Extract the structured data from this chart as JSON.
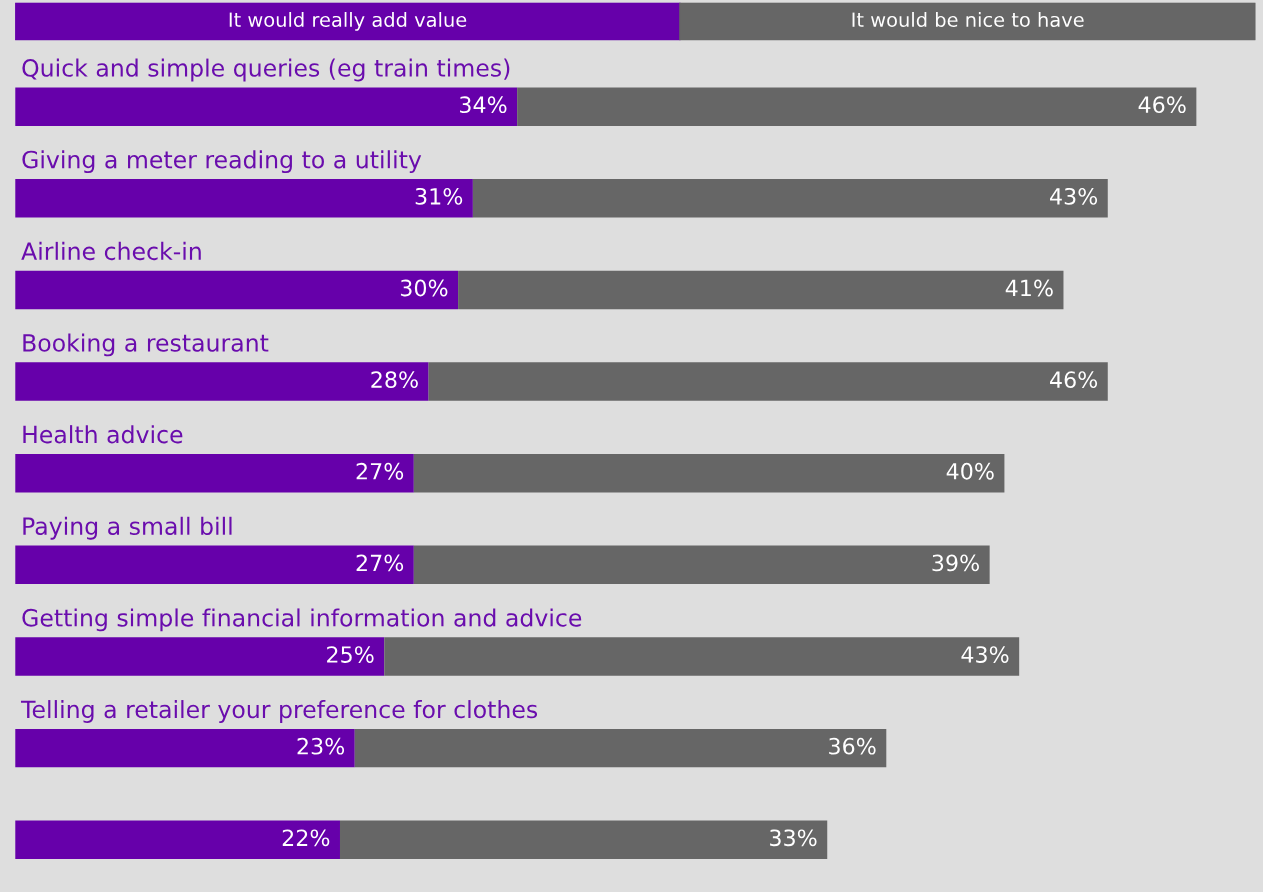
{
  "chart_data": {
    "type": "bar",
    "orientation": "horizontal",
    "stacked": true,
    "categories": [
      "Quick and simple queries (eg train times)",
      "Giving a meter reading to a utility",
      "Airline check-in",
      "Booking a restaurant",
      "Health advice",
      "Paying a small bill",
      "Getting simple financial information and advice",
      "Telling a retailer your preference for clothes",
      null
    ],
    "series": [
      {
        "name": "It would really add value",
        "color": "#6600aa",
        "values": [
          34,
          31,
          30,
          28,
          27,
          27,
          25,
          23,
          22
        ],
        "value_labels": [
          "34%",
          "31%",
          "30%",
          "28%",
          "27%",
          "27%",
          "25%",
          "23%",
          "22%"
        ]
      },
      {
        "name": "It would be nice to have",
        "color": "#666666",
        "values": [
          46,
          43,
          41,
          46,
          40,
          39,
          43,
          36,
          33
        ],
        "value_labels": [
          "46%",
          "43%",
          "41%",
          "46%",
          "40%",
          "39%",
          "43%",
          "36%",
          "33%"
        ]
      }
    ],
    "legend": "top"
  }
}
